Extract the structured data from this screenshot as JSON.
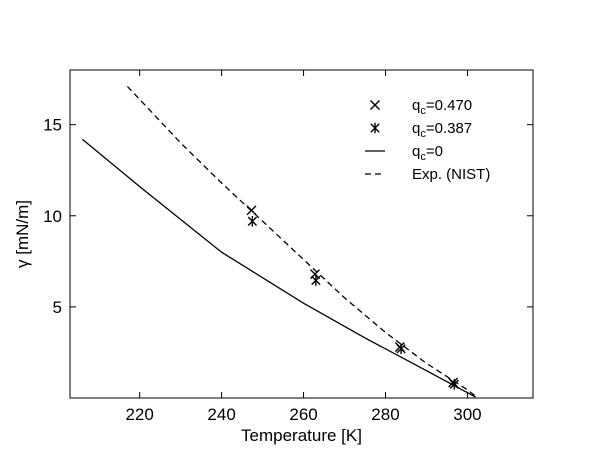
{
  "chart_data": {
    "type": "scatter",
    "title": "",
    "xlabel": "Temperature [K]",
    "ylabel": "γ [mN/m]",
    "xlim": [
      203,
      316
    ],
    "ylim": [
      0,
      18
    ],
    "x_ticks": [
      220,
      240,
      260,
      280,
      300
    ],
    "y_ticks": [
      5,
      10,
      15
    ],
    "grid": false,
    "legend_position": "top-right",
    "series": [
      {
        "name": "q",
        "name_sub": "c",
        "name_suffix": "=0.470",
        "kind": "scatter",
        "marker": "x",
        "points": [
          [
            247.3,
            10.3
          ],
          [
            262.8,
            6.8
          ],
          [
            283.5,
            2.8
          ],
          [
            296.5,
            0.85
          ]
        ]
      },
      {
        "name": "q",
        "name_sub": "c",
        "name_suffix": "=0.387",
        "kind": "scatter",
        "marker": "asterisk",
        "points": [
          [
            247.5,
            9.7
          ],
          [
            263.0,
            6.45
          ],
          [
            283.8,
            2.7
          ],
          [
            296.8,
            0.75
          ]
        ]
      },
      {
        "name": "q",
        "name_sub": "c",
        "name_suffix": "=0",
        "kind": "line",
        "style": "solid",
        "points": [
          [
            206,
            14.2
          ],
          [
            220,
            11.6
          ],
          [
            240,
            8.0
          ],
          [
            260,
            5.2
          ],
          [
            275,
            3.3
          ],
          [
            290,
            1.5
          ],
          [
            302,
            0.05
          ]
        ]
      },
      {
        "name": "Exp. (NIST)",
        "kind": "line",
        "style": "dashed",
        "points": [
          [
            217,
            17.1
          ],
          [
            230,
            14.0
          ],
          [
            240,
            11.8
          ],
          [
            250,
            9.7
          ],
          [
            260,
            7.6
          ],
          [
            270,
            5.5
          ],
          [
            280,
            3.6
          ],
          [
            290,
            1.9
          ],
          [
            300,
            0.45
          ],
          [
            302,
            0.1
          ]
        ]
      }
    ]
  }
}
